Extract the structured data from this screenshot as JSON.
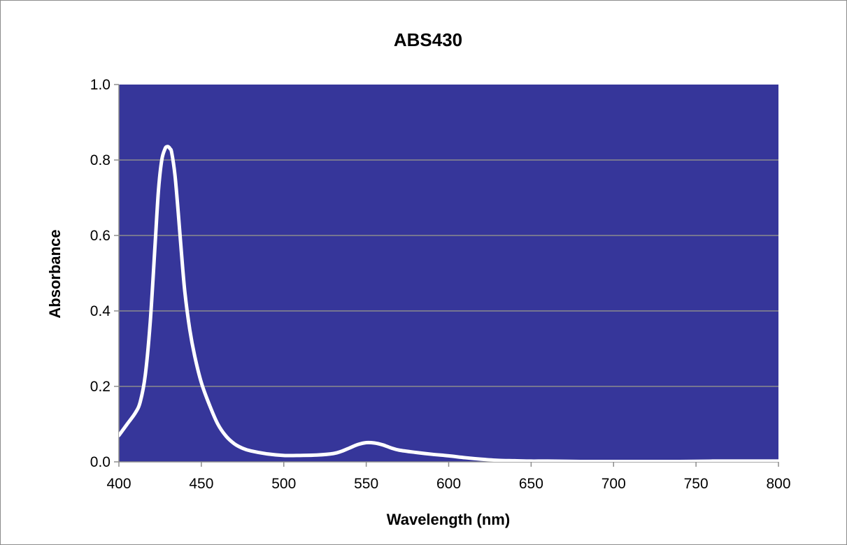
{
  "chart_data": {
    "type": "line",
    "title": "ABS430",
    "xlabel": "Wavelength (nm)",
    "ylabel": "Absorbance",
    "xlim": [
      400,
      800
    ],
    "ylim": [
      0,
      1
    ],
    "x_ticks": [
      400,
      450,
      500,
      550,
      600,
      650,
      700,
      750,
      800
    ],
    "y_ticks": [
      0.0,
      0.2,
      0.4,
      0.6,
      0.8,
      1.0
    ],
    "y_tick_labels": [
      "0.0",
      "0.2",
      "0.4",
      "0.6",
      "0.8",
      "1.0"
    ],
    "grid": "horizontal",
    "legend": "none",
    "colors": {
      "plot_background": "#36369a",
      "line": "#ffffff",
      "gridline": "#8c8c8c"
    },
    "series": [
      {
        "x": [
          400,
          405,
          410,
          413,
          416,
          419,
          422,
          424,
          426,
          428,
          429,
          430,
          431,
          432,
          434,
          436,
          438,
          440,
          443,
          446,
          450,
          455,
          460,
          465,
          470,
          475,
          480,
          490,
          500,
          510,
          520,
          530,
          535,
          540,
          545,
          550,
          555,
          560,
          565,
          570,
          580,
          590,
          600,
          610,
          620,
          630,
          640,
          650,
          660,
          680,
          700,
          720,
          740,
          760,
          780,
          800
        ],
        "y": [
          0.07,
          0.1,
          0.13,
          0.16,
          0.23,
          0.37,
          0.58,
          0.72,
          0.8,
          0.83,
          0.835,
          0.835,
          0.83,
          0.82,
          0.76,
          0.66,
          0.55,
          0.45,
          0.35,
          0.28,
          0.21,
          0.15,
          0.1,
          0.068,
          0.048,
          0.036,
          0.029,
          0.021,
          0.017,
          0.017,
          0.018,
          0.022,
          0.028,
          0.037,
          0.046,
          0.051,
          0.05,
          0.045,
          0.037,
          0.031,
          0.025,
          0.02,
          0.016,
          0.011,
          0.007,
          0.004,
          0.003,
          0.002,
          0.002,
          0.001,
          0.001,
          0.001,
          0.001,
          0.002,
          0.002,
          0.002
        ]
      }
    ]
  }
}
